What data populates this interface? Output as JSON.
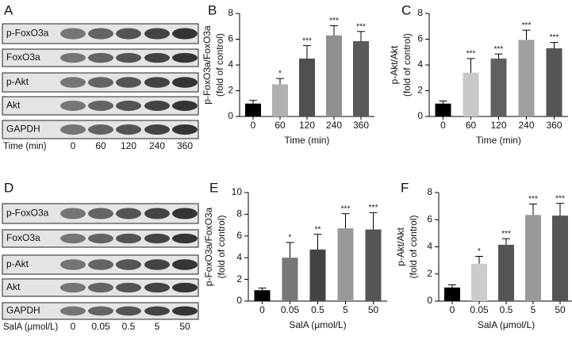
{
  "blots": [
    {
      "label": "A",
      "rows": [
        "p-FoxO3a",
        "FoxO3a",
        "p-Akt",
        "Akt",
        "GAPDH"
      ],
      "x_title": "Time (min)",
      "lanes": [
        "0",
        "60",
        "120",
        "240",
        "360"
      ]
    },
    {
      "label": "D",
      "rows": [
        "p-FoxO3a",
        "FoxO3a",
        "p-Akt",
        "Akt",
        "GAPDH"
      ],
      "x_title": "SalA (μmol/L)",
      "lanes": [
        "0",
        "0.05",
        "0.5",
        "5",
        "50"
      ]
    }
  ],
  "chart_data": [
    {
      "type": "bar",
      "panel": "B",
      "ylabel": [
        "p-FoxO3a/FoxO3a",
        "(fold of control)"
      ],
      "xlabel": "Time (min)",
      "categories": [
        "0",
        "60",
        "120",
        "240",
        "360"
      ],
      "values": [
        1,
        2.5,
        4.5,
        6.3,
        5.85
      ],
      "errors": [
        0.25,
        0.45,
        1.0,
        0.75,
        0.75
      ],
      "annotations": [
        null,
        "*",
        "***",
        "***",
        "***"
      ],
      "colors": [
        "#000000",
        "#b0b0b0",
        "#505050",
        "#909090",
        "#5a5a5a"
      ],
      "ylim": [
        0,
        8
      ],
      "yticks": [
        0,
        2,
        4,
        6,
        8
      ]
    },
    {
      "type": "bar",
      "panel": "C",
      "ylabel": [
        "p-Akt/Akt",
        "(fold of control)"
      ],
      "xlabel": "Time (min)",
      "categories": [
        "0",
        "60",
        "120",
        "240",
        "360"
      ],
      "values": [
        1,
        3.4,
        4.5,
        5.95,
        5.3
      ],
      "errors": [
        0.2,
        1.1,
        0.35,
        0.75,
        0.45
      ],
      "annotations": [
        null,
        "***",
        "***",
        "***",
        "***"
      ],
      "colors": [
        "#000000",
        "#c8c8c8",
        "#606060",
        "#a0a0a0",
        "#555555"
      ],
      "ylim": [
        0,
        8
      ],
      "yticks": [
        0,
        2,
        4,
        6,
        8
      ]
    },
    {
      "type": "bar",
      "panel": "E",
      "ylabel": [
        "p-FoxO3a/FoxO3a",
        "(fold of control)"
      ],
      "xlabel": "SalA (μmol/L)",
      "categories": [
        "0",
        "0.05",
        "0.5",
        "5",
        "50"
      ],
      "values": [
        1,
        4,
        4.75,
        6.7,
        6.6
      ],
      "errors": [
        0.2,
        1.4,
        1.4,
        1.35,
        1.55
      ],
      "annotations": [
        null,
        "*",
        "**",
        "***",
        "***"
      ],
      "colors": [
        "#000000",
        "#777777",
        "#444444",
        "#999999",
        "#555555"
      ],
      "ylim": [
        0,
        10
      ],
      "yticks": [
        0,
        2,
        4,
        6,
        8,
        10
      ]
    },
    {
      "type": "bar",
      "panel": "F",
      "ylabel": [
        "p-Akt/Akt",
        "(fold of control)"
      ],
      "xlabel": "SalA (μmol/L)",
      "categories": [
        "0",
        "0.05",
        "0.5",
        "5",
        "50"
      ],
      "values": [
        1,
        2.75,
        4.15,
        6.35,
        6.3
      ],
      "errors": [
        0.2,
        0.55,
        0.45,
        0.8,
        0.9
      ],
      "annotations": [
        null,
        "*",
        "***",
        "***",
        "***"
      ],
      "colors": [
        "#000000",
        "#cccccc",
        "#555555",
        "#999999",
        "#555555"
      ],
      "ylim": [
        0,
        8
      ],
      "yticks": [
        0,
        2,
        4,
        6,
        8
      ]
    }
  ]
}
